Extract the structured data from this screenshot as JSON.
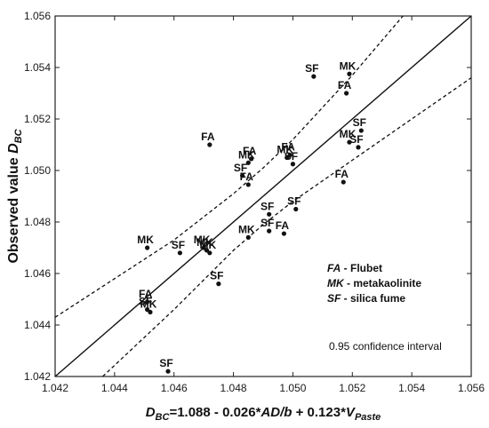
{
  "chart_data": {
    "type": "scatter",
    "xlabel": {
      "parts": [
        {
          "text": "D",
          "italic": true
        },
        {
          "text": "BC",
          "italic": true,
          "sub": true
        },
        {
          "text": "=1.088 - 0.026*"
        },
        {
          "text": "AD/b",
          "italic": true
        },
        {
          "text": " + 0.123*"
        },
        {
          "text": "V",
          "italic": true
        },
        {
          "text": "Paste",
          "italic": true,
          "sub": true
        }
      ]
    },
    "ylabel": {
      "parts": [
        {
          "text": "Observed value "
        },
        {
          "text": "D",
          "italic": true
        },
        {
          "text": "BC",
          "italic": true,
          "sub": true
        }
      ]
    },
    "xlim": [
      1.042,
      1.056
    ],
    "ylim": [
      1.042,
      1.056
    ],
    "xticks": [
      "1.042",
      "1.044",
      "1.046",
      "1.048",
      "1.050",
      "1.052",
      "1.054",
      "1.056"
    ],
    "yticks": [
      "1.042",
      "1.044",
      "1.046",
      "1.048",
      "1.050",
      "1.052",
      "1.054",
      "1.056"
    ],
    "grid": false,
    "fit_line": {
      "x": [
        1.042,
        1.056
      ],
      "y": [
        1.042,
        1.056
      ]
    },
    "confidence_band": {
      "label": "0.95 confidence interval",
      "upper": [
        [
          1.042,
          1.0443
        ],
        [
          1.044,
          1.0458
        ],
        [
          1.046,
          1.0473
        ],
        [
          1.048,
          1.0491
        ],
        [
          1.049,
          1.0501
        ],
        [
          1.05,
          1.0512
        ],
        [
          1.052,
          1.0537
        ],
        [
          1.054,
          1.0564
        ]
      ],
      "lower": [
        [
          1.0436,
          1.042
        ],
        [
          1.046,
          1.0446
        ],
        [
          1.048,
          1.0469
        ],
        [
          1.049,
          1.0479
        ],
        [
          1.05,
          1.0488
        ],
        [
          1.052,
          1.0504
        ],
        [
          1.054,
          1.052
        ],
        [
          1.056,
          1.0536
        ]
      ]
    },
    "points": [
      {
        "label": "SF",
        "x": 1.0507,
        "y": 1.05365
      },
      {
        "label": "MK",
        "x": 1.0519,
        "y": 1.05375
      },
      {
        "label": "FA",
        "x": 1.0518,
        "y": 1.053
      },
      {
        "label": "SF",
        "x": 1.0523,
        "y": 1.05155
      },
      {
        "label": "MK",
        "x": 1.0519,
        "y": 1.0511
      },
      {
        "label": "SF",
        "x": 1.0522,
        "y": 1.0509
      },
      {
        "label": "FA",
        "x": 1.0517,
        "y": 1.04955
      },
      {
        "label": "FA",
        "x": 1.0472,
        "y": 1.051
      },
      {
        "label": "MK",
        "x": 1.0485,
        "y": 1.0503
      },
      {
        "label": "FA",
        "x": 1.0486,
        "y": 1.05045
      },
      {
        "label": "SF",
        "x": 1.0483,
        "y": 1.0498
      },
      {
        "label": "FA",
        "x": 1.0485,
        "y": 1.04945
      },
      {
        "label": "FA",
        "x": 1.0499,
        "y": 1.0506
      },
      {
        "label": "MK",
        "x": 1.0498,
        "y": 1.0505
      },
      {
        "label": "SF",
        "x": 1.05,
        "y": 1.05025
      },
      {
        "label": "SF",
        "x": 1.0492,
        "y": 1.0483
      },
      {
        "label": "SF",
        "x": 1.0501,
        "y": 1.0485
      },
      {
        "label": "MK",
        "x": 1.0485,
        "y": 1.0474
      },
      {
        "label": "SF",
        "x": 1.0492,
        "y": 1.04765
      },
      {
        "label": "FA",
        "x": 1.0497,
        "y": 1.04755
      },
      {
        "label": "MK",
        "x": 1.0451,
        "y": 1.047
      },
      {
        "label": "SF",
        "x": 1.0462,
        "y": 1.0468
      },
      {
        "label": "MK",
        "x": 1.047,
        "y": 1.047
      },
      {
        "label": "MK",
        "x": 1.0471,
        "y": 1.0469
      },
      {
        "label": "MK",
        "x": 1.0472,
        "y": 1.0468
      },
      {
        "label": "SF",
        "x": 1.0475,
        "y": 1.0456
      },
      {
        "label": "FA",
        "x": 1.0451,
        "y": 1.0449
      },
      {
        "label": "SF",
        "x": 1.0451,
        "y": 1.0446
      },
      {
        "label": "MK",
        "x": 1.0452,
        "y": 1.0445
      },
      {
        "label": "SF",
        "x": 1.0458,
        "y": 1.0422
      }
    ],
    "legend": [
      {
        "code": "FA",
        "text": " - Flubet"
      },
      {
        "code": "MK",
        "text": " - metakaolinite"
      },
      {
        "code": "SF",
        "text": " - silica fume"
      }
    ]
  }
}
